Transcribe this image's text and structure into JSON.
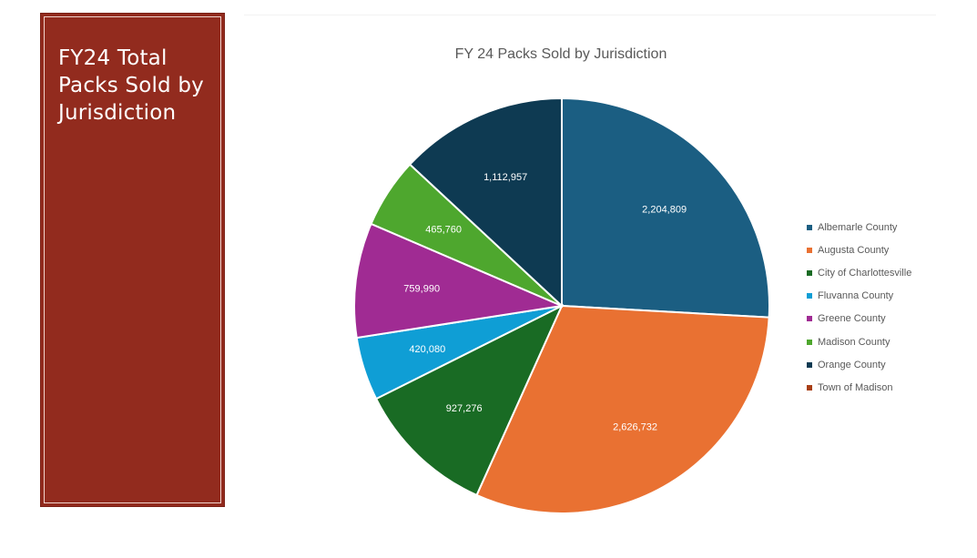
{
  "slide": {
    "side_title": "FY24 Total Packs Sold by Jurisdiction",
    "panel_color": "#922b1e"
  },
  "chart_data": {
    "type": "pie",
    "title": "FY 24 Packs Sold by Jurisdiction",
    "legend_position": "right",
    "slices": [
      {
        "name": "Albemarle County",
        "value": 2204809,
        "label": "2,204,809",
        "color": "#1b5e82"
      },
      {
        "name": "Augusta County",
        "value": 2626732,
        "label": "2,626,732",
        "color": "#e97132"
      },
      {
        "name": "City of Charlottesville",
        "value": 927276,
        "label": "927,276",
        "color": "#196b24"
      },
      {
        "name": "Fluvanna County",
        "value": 420080,
        "label": "420,080",
        "color": "#0f9ed5"
      },
      {
        "name": "Greene County",
        "value": 759990,
        "label": "759,990",
        "color": "#a02b93"
      },
      {
        "name": "Madison County",
        "value": 465760,
        "label": "465,760",
        "color": "#4ea72e"
      },
      {
        "name": "Orange County",
        "value": 1112957,
        "label": "1,112,957",
        "color": "#0e3a52"
      },
      {
        "name": "Town of Madison",
        "value": 0,
        "label": "",
        "color": "#a83f16"
      }
    ]
  }
}
